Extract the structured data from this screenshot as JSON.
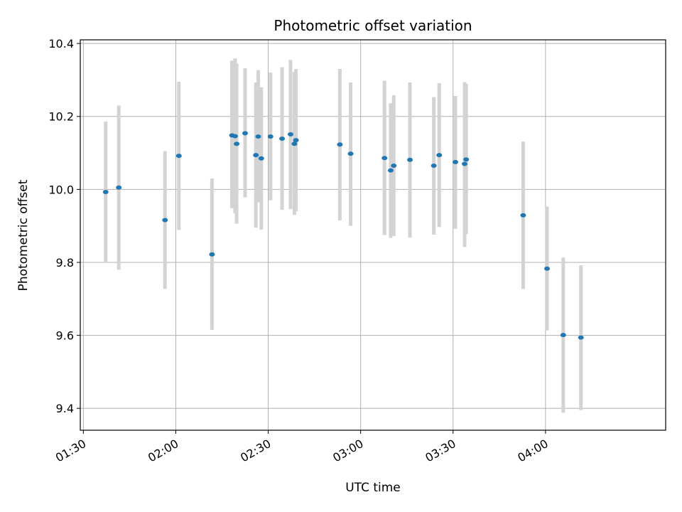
{
  "chart_data": {
    "type": "scatter",
    "title": "Photometric offset variation",
    "xlabel": "UTC time",
    "ylabel": "Photometric offset",
    "x_unit": "UTC time (HH:MM)",
    "xlim": [
      "01:29",
      "04:39"
    ],
    "ylim": [
      9.34,
      10.41
    ],
    "xticks": [
      "01:30",
      "02:00",
      "02:30",
      "03:00",
      "03:30",
      "04:00"
    ],
    "yticks": [
      "9.4",
      "9.6",
      "9.8",
      "10.0",
      "10.2",
      "10.4"
    ],
    "grid": true,
    "point_color": "#1f77b4",
    "errorbar_color": "#d3d3d3",
    "points": [
      {
        "t": "01:37:15",
        "y": 9.993,
        "lo": 9.8,
        "hi": 10.186
      },
      {
        "t": "01:41:30",
        "y": 10.005,
        "lo": 9.78,
        "hi": 10.23
      },
      {
        "t": "01:56:30",
        "y": 9.916,
        "lo": 9.727,
        "hi": 10.105
      },
      {
        "t": "02:01:00",
        "y": 10.092,
        "lo": 9.889,
        "hi": 10.295
      },
      {
        "t": "02:11:45",
        "y": 9.822,
        "lo": 9.615,
        "hi": 10.03
      },
      {
        "t": "02:18:15",
        "y": 10.148,
        "lo": 9.948,
        "hi": 10.353
      },
      {
        "t": "02:19:15",
        "y": 10.146,
        "lo": 9.935,
        "hi": 10.359
      },
      {
        "t": "02:19:45",
        "y": 10.125,
        "lo": 9.906,
        "hi": 10.345
      },
      {
        "t": "02:22:30",
        "y": 10.154,
        "lo": 9.978,
        "hi": 10.332
      },
      {
        "t": "02:26:00",
        "y": 10.094,
        "lo": 9.895,
        "hi": 10.293
      },
      {
        "t": "02:26:45",
        "y": 10.145,
        "lo": 9.965,
        "hi": 10.327
      },
      {
        "t": "02:27:45",
        "y": 10.085,
        "lo": 9.89,
        "hi": 10.28
      },
      {
        "t": "02:30:45",
        "y": 10.145,
        "lo": 9.97,
        "hi": 10.32
      },
      {
        "t": "02:34:30",
        "y": 10.139,
        "lo": 9.944,
        "hi": 10.335
      },
      {
        "t": "02:37:15",
        "y": 10.151,
        "lo": 9.946,
        "hi": 10.355
      },
      {
        "t": "02:38:30",
        "y": 10.125,
        "lo": 9.93,
        "hi": 10.322
      },
      {
        "t": "02:39:00",
        "y": 10.135,
        "lo": 9.94,
        "hi": 10.33
      },
      {
        "t": "02:53:15",
        "y": 10.123,
        "lo": 9.915,
        "hi": 10.33
      },
      {
        "t": "02:56:45",
        "y": 10.098,
        "lo": 9.9,
        "hi": 10.293
      },
      {
        "t": "03:07:45",
        "y": 10.086,
        "lo": 9.875,
        "hi": 10.298
      },
      {
        "t": "03:09:45",
        "y": 10.052,
        "lo": 9.867,
        "hi": 10.236
      },
      {
        "t": "03:10:45",
        "y": 10.065,
        "lo": 9.872,
        "hi": 10.258
      },
      {
        "t": "03:16:00",
        "y": 10.081,
        "lo": 9.868,
        "hi": 10.293
      },
      {
        "t": "03:23:45",
        "y": 10.065,
        "lo": 9.876,
        "hi": 10.253
      },
      {
        "t": "03:25:30",
        "y": 10.094,
        "lo": 9.897,
        "hi": 10.291
      },
      {
        "t": "03:30:45",
        "y": 10.075,
        "lo": 9.892,
        "hi": 10.256
      },
      {
        "t": "03:33:45",
        "y": 10.07,
        "lo": 9.842,
        "hi": 10.294
      },
      {
        "t": "03:34:15",
        "y": 10.082,
        "lo": 9.878,
        "hi": 10.289
      },
      {
        "t": "03:52:45",
        "y": 9.929,
        "lo": 9.727,
        "hi": 10.131
      },
      {
        "t": "04:00:30",
        "y": 9.783,
        "lo": 9.613,
        "hi": 9.953
      },
      {
        "t": "04:05:45",
        "y": 9.601,
        "lo": 9.388,
        "hi": 9.813
      },
      {
        "t": "04:11:30",
        "y": 9.594,
        "lo": 9.395,
        "hi": 9.792
      }
    ]
  }
}
